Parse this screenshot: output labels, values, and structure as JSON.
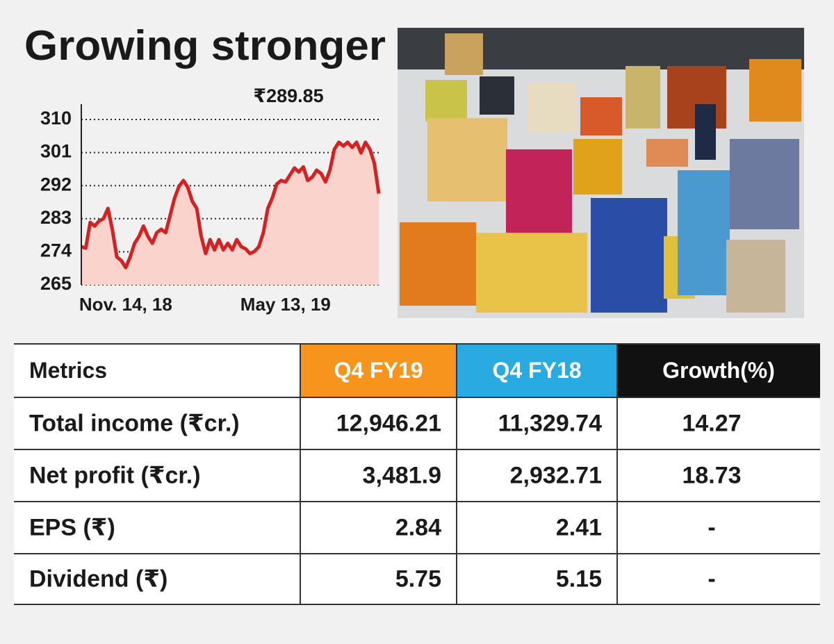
{
  "header": {
    "title": "Growing stronger"
  },
  "chart_data": {
    "type": "line",
    "annotation": "₹289.85",
    "categories": [
      null,
      null,
      null,
      null,
      null,
      null,
      null,
      null,
      null,
      null,
      "Nov. 14, 18",
      null,
      null,
      null,
      null,
      null,
      null,
      null,
      null,
      null,
      null,
      null,
      null,
      null,
      null,
      null,
      null,
      null,
      null,
      null,
      null,
      null,
      null,
      null,
      null,
      null,
      null,
      null,
      null,
      null,
      null,
      null,
      null,
      null,
      null,
      null,
      "May 13, 19",
      null,
      null,
      null,
      null,
      null,
      null,
      null,
      null,
      null,
      null,
      null,
      null,
      null,
      null,
      null,
      null,
      null,
      null,
      null,
      null,
      null
    ],
    "series": [
      {
        "color": "#d42222",
        "fill": "#f9d3cc",
        "values": [
          275.4,
          275,
          282,
          281,
          282.4,
          283,
          285.8,
          280,
          272.6,
          271.6,
          269.7,
          272.6,
          276.3,
          278.2,
          281,
          278.2,
          276.3,
          279.2,
          280.1,
          279.2,
          283.9,
          288.6,
          291.8,
          293.4,
          291.5,
          287.7,
          285.8,
          278.2,
          273.5,
          277.3,
          274.5,
          277.3,
          274.5,
          276.3,
          274.5,
          277.3,
          275.4,
          274.8,
          273.5,
          274.1,
          275.4,
          279.2,
          285.8,
          288.6,
          292.4,
          293.4,
          293,
          294.9,
          296.8,
          295.7,
          297.1,
          293.4,
          294.3,
          296.2,
          295.3,
          293,
          296.2,
          301.9,
          303.8,
          302.8,
          303.8,
          302.4,
          303.8,
          300.9,
          303.8,
          301.9,
          298.1,
          289.85
        ]
      }
    ],
    "ylim": [
      265,
      310
    ],
    "yticks": [
      265,
      274,
      283,
      292,
      301,
      310
    ],
    "grid": true
  },
  "table": {
    "header": [
      "Metrics",
      "Q4 FY19",
      "Q4 FY18",
      "Growth(%)"
    ],
    "rows": [
      [
        "Total income (₹cr.)",
        "12,946.21",
        "11,329.74",
        "14.27"
      ],
      [
        "Net profit (₹cr.)",
        "3,481.9",
        "2,932.71",
        "18.73"
      ],
      [
        "EPS (₹)",
        "2.84",
        "2.41",
        "-"
      ],
      [
        "Dividend (₹)",
        "5.75",
        "5.15",
        "-"
      ]
    ]
  }
}
